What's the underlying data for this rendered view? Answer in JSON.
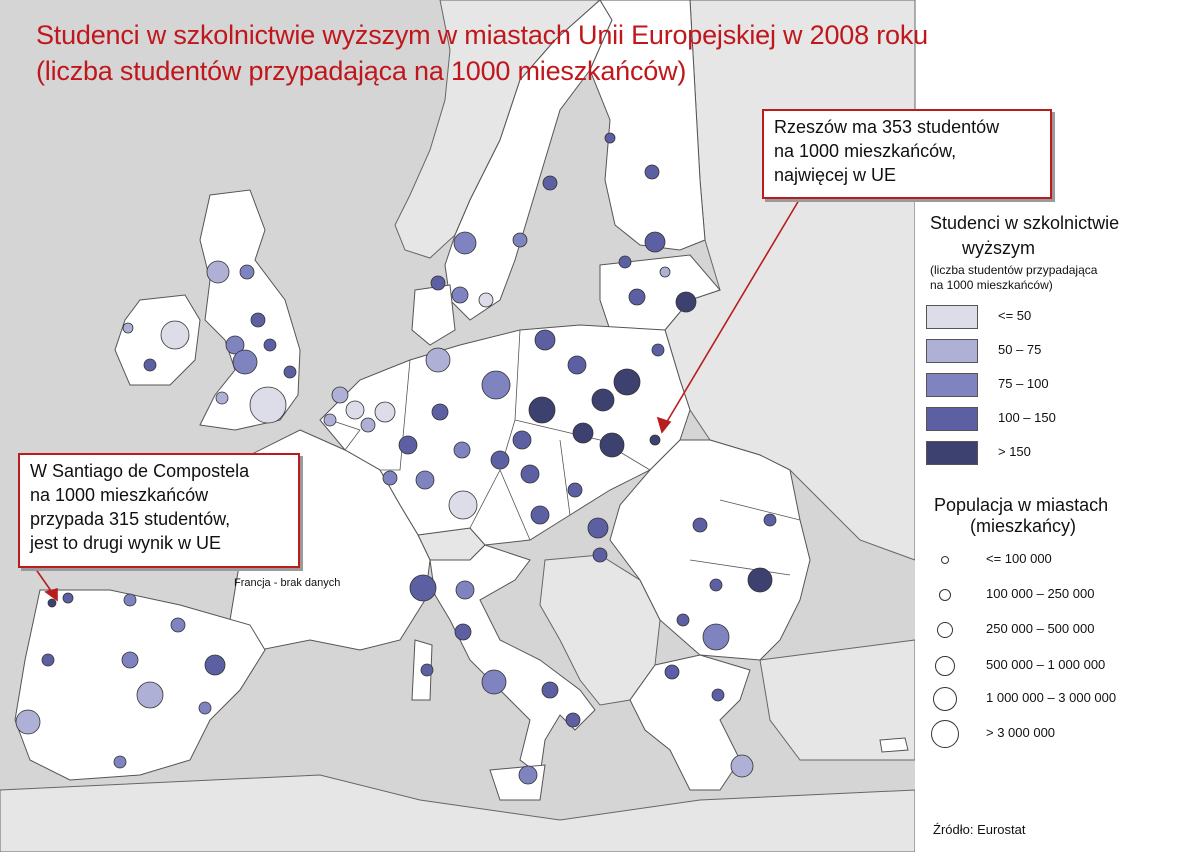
{
  "title": {
    "line1": "Studenci w szkolnictwie wyższym w miastach Unii Europejskiej w 2008 roku",
    "line2": "(liczba studentów przypadająca na 1000 mieszkańców)"
  },
  "callouts": {
    "rzeszow": "Rzeszów ma 353 studentów\nna 1000 mieszkańców,\nnajwięcej w UE",
    "santiago": "W Santiago de Compostela\nna 1000 mieszkańców\nprzypada 315 studentów,\njest to drugi wynik w UE"
  },
  "france_note": "Francja - brak danych",
  "legend_students": {
    "title_line1": "Studenci w szkolnictwie",
    "title_line2": "wyższym",
    "sub_line1": "(liczba studentów przypadająca",
    "sub_line2": "na 1000 mieszkańców)",
    "classes": [
      {
        "label": "<= 50",
        "color": "#dcdde9"
      },
      {
        "label": "50 – 75",
        "color": "#aeb0d6"
      },
      {
        "label": "75 – 100",
        "color": "#7f83c0"
      },
      {
        "label": "100 – 150",
        "color": "#5c5fa2"
      },
      {
        "label": "> 150",
        "color": "#3d416f"
      }
    ]
  },
  "legend_population": {
    "title_line1": "Populacja w miastach",
    "title_line2": "(mieszkańcy)",
    "classes": [
      {
        "label": "<= 100 000"
      },
      {
        "label": "100 000 – 250 000"
      },
      {
        "label": "250 000 – 500 000"
      },
      {
        "label": "500 000 – 1 000 000"
      },
      {
        "label": "1 000 000 – 3 000 000"
      },
      {
        "label": "> 3 000 000"
      }
    ]
  },
  "source": "Źródło: Eurostat",
  "colors": {
    "sea": "#d9d9d9",
    "eu_land": "#ffffff",
    "non_eu_land": "#e3e3e3",
    "title_red": "#c0171d"
  },
  "cities": [
    {
      "name": "Rzeszów",
      "class": 4,
      "size": 1
    },
    {
      "name": "Santiago de Compostela",
      "class": 4,
      "size": 0
    }
  ]
}
